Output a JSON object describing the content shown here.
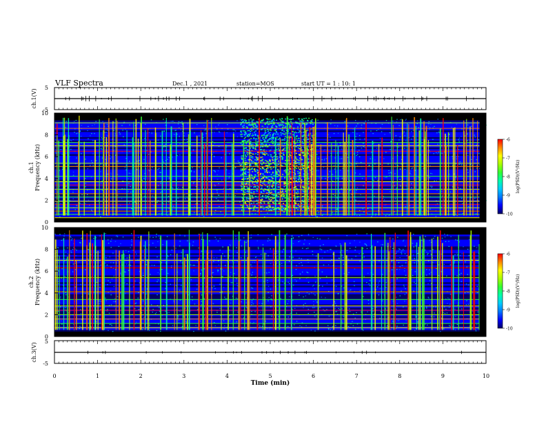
{
  "header": {
    "title": "VLF Spectra",
    "date": "Dec.1 , 2021",
    "station": "station=MOS",
    "start": "start UT =  1 : 10: 1"
  },
  "colors": {
    "background": "#000000",
    "colormap": [
      "#000066",
      "#0000ff",
      "#0077ff",
      "#00ccff",
      "#00ffaa",
      "#33ff33",
      "#aaff00",
      "#ffff00",
      "#ff8800",
      "#ff0000"
    ]
  },
  "chart_data": [
    {
      "type": "line",
      "ylabel": "ch.1(V)",
      "ylim": [
        -5,
        5
      ],
      "ytick_labels": [
        "5",
        "-5"
      ],
      "xlim": [
        0,
        10
      ],
      "x": [
        0,
        10
      ],
      "values": [
        0,
        0
      ]
    },
    {
      "type": "heatmap",
      "ylabel": "ch.1\nFrequency (kHz)",
      "ylim": [
        0,
        10
      ],
      "ytick_labels": [
        "0",
        "2",
        "4",
        "6",
        "8",
        "10"
      ],
      "xlim": [
        0,
        10
      ],
      "colorbar": {
        "label": "log(PSD)(V²/Hz)",
        "range": [
          -10,
          -6
        ],
        "tick_labels": [
          "-6",
          "-7",
          "-8",
          "-9",
          "-10"
        ]
      },
      "features": {
        "persistent_lines_khz": [
          0.4,
          0.7,
          1.0,
          1.3,
          1.6,
          1.9,
          2.3,
          2.6,
          3.0,
          3.4,
          3.7,
          4.2,
          5.1,
          5.4,
          6.5,
          7.0,
          7.3,
          8.6,
          9.1
        ],
        "broadband_enhancement": {
          "x_min": [
            4.3,
            6.0
          ],
          "freq_khz": [
            1.0,
            9.6
          ]
        }
      }
    },
    {
      "type": "heatmap",
      "ylabel": "ch.2\nFrequency (kHz)",
      "ylim": [
        0,
        10
      ],
      "ytick_labels": [
        "0",
        "2",
        "4",
        "6",
        "8",
        "10"
      ],
      "xlim": [
        0,
        10
      ],
      "colorbar": {
        "label": "log(PSD)(V²/Hz)",
        "range": [
          -10,
          -6
        ],
        "tick_labels": [
          "-6",
          "-7",
          "-8",
          "-9",
          "-10"
        ]
      },
      "features": {
        "persistent_lines_khz": [
          0.8,
          1.2,
          1.6,
          2.0,
          2.4,
          2.8,
          3.4,
          4.1,
          5.4,
          6.3,
          7.0
        ]
      }
    },
    {
      "type": "line",
      "ylabel": "ch.3(V)",
      "ylim": [
        -5,
        5
      ],
      "ytick_labels": [
        "5",
        "-5"
      ],
      "xlim": [
        0,
        10
      ],
      "x": [
        0,
        10
      ],
      "values": [
        0,
        0
      ]
    }
  ],
  "xaxis": {
    "label": "Time (min)",
    "tick_labels": [
      "0",
      "1",
      "2",
      "3",
      "4",
      "5",
      "6",
      "7",
      "8",
      "9",
      "10"
    ]
  }
}
